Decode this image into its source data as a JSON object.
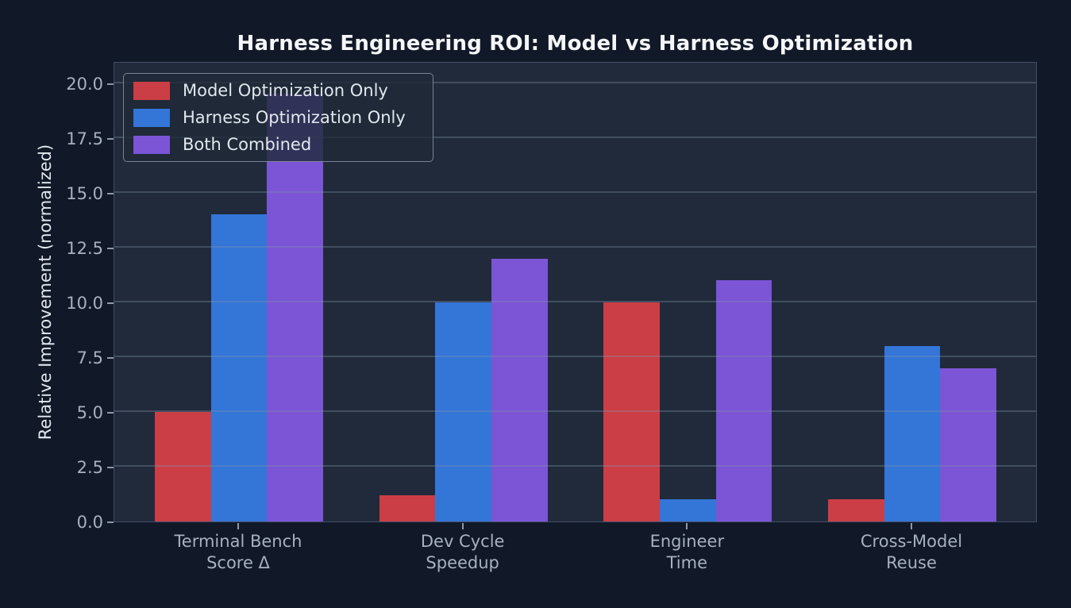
{
  "chart_data": {
    "type": "bar",
    "title": "Harness Engineering ROI: Model vs Harness Optimization",
    "ylabel": "Relative Improvement (normalized)",
    "xlabel": "",
    "categories": [
      [
        "Terminal Bench",
        "Score Δ"
      ],
      [
        "Dev Cycle",
        "Speedup"
      ],
      [
        "Engineer",
        "Time"
      ],
      [
        "Cross-Model",
        "Reuse"
      ]
    ],
    "series": [
      {
        "name": "Model Optimization Only",
        "color": "#cc3e46",
        "values": [
          5,
          1.2,
          10,
          1
        ]
      },
      {
        "name": "Harness Optimization Only",
        "color": "#3475d8",
        "values": [
          14,
          10,
          1,
          8
        ]
      },
      {
        "name": "Both Combined",
        "color": "#7b55d6",
        "values": [
          19.5,
          12,
          11,
          7
        ]
      }
    ],
    "ytick_labels": [
      "0.0",
      "2.5",
      "5.0",
      "7.5",
      "10.0",
      "12.5",
      "15.0",
      "17.5",
      "20.0"
    ],
    "yticks": [
      0,
      2.5,
      5,
      7.5,
      10,
      12.5,
      15,
      17.5,
      20
    ],
    "ylim": [
      0,
      21
    ],
    "grid": true,
    "legend_position": "upper left"
  },
  "colors": {
    "page_bg": "#111827",
    "plot_bg": "#202a3a",
    "spine": "#43506a",
    "grid": "rgba(130,145,170,0.35)",
    "tick_text": "#a7b1c2",
    "tick_mark": "#8d99ab",
    "axis_label_text": "#e2e7ee",
    "title_text": "#f4f6f8",
    "legend_bg": "rgba(31,41,55,0.8)",
    "legend_border": "rgba(150,163,182,0.75)",
    "legend_text": "#e2e7ee"
  }
}
